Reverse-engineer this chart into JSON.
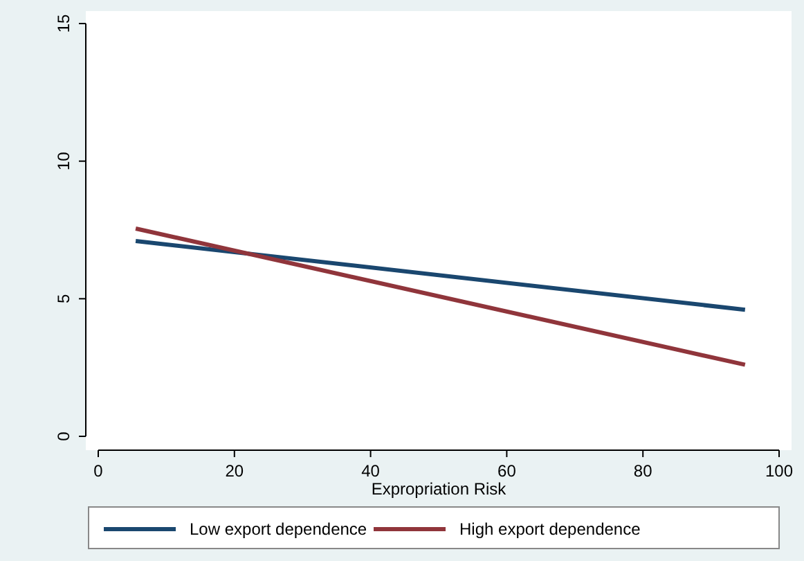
{
  "chart_data": {
    "type": "line",
    "xlabel": "Expropriation Risk",
    "x": [
      5.5,
      95
    ],
    "xlim": [
      0,
      100
    ],
    "xticks": [
      0,
      20,
      40,
      60,
      80,
      100
    ],
    "ylim": [
      0,
      15
    ],
    "yticks": [
      0,
      5,
      10,
      15
    ],
    "grid": false,
    "legend": "bottom",
    "marker": "none",
    "line_style": "solid",
    "series": [
      {
        "name": "Low export dependence",
        "color": "#1a476f",
        "values": [
          7.1,
          4.6
        ]
      },
      {
        "name": "High export dependence",
        "color": "#90353b",
        "values": [
          7.55,
          2.6
        ]
      }
    ]
  }
}
